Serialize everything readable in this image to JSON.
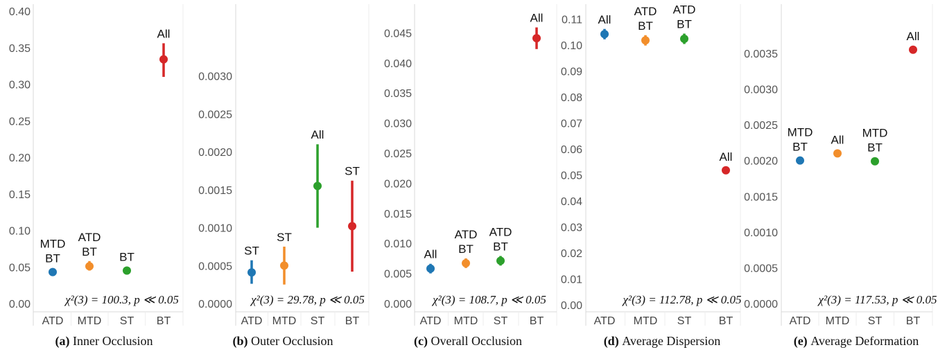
{
  "colors": {
    "ATD": "#1f77b4",
    "MTD": "#f28e2b",
    "ST": "#2ca02c",
    "BT": "#d62728",
    "axis": "#d9d9d9",
    "grid": "#eeeeee"
  },
  "chart_data": [
    {
      "type": "scatter",
      "panel": "a",
      "caption_letter": "(a)",
      "caption_text": "Inner Occlusion",
      "categories": [
        "ATD",
        "MTD",
        "ST",
        "BT"
      ],
      "y_ticks": [
        "0.00",
        "0.05",
        "0.10",
        "0.15",
        "0.20",
        "0.25",
        "0.30",
        "0.35",
        "0.40"
      ],
      "ylim": [
        0,
        0.4
      ],
      "stat": "χ²(3) = 100.3, p ≪ 0.05",
      "points": [
        {
          "category": "ATD",
          "value": 0.043,
          "low": 0.038,
          "high": 0.048,
          "label": [
            "MTD",
            "BT"
          ]
        },
        {
          "category": "MTD",
          "value": 0.051,
          "low": 0.045,
          "high": 0.058,
          "label": [
            "ATD",
            "BT"
          ]
        },
        {
          "category": "ST",
          "value": 0.045,
          "low": 0.04,
          "high": 0.05,
          "label": [
            "BT"
          ]
        },
        {
          "category": "BT",
          "value": 0.334,
          "low": 0.31,
          "high": 0.356,
          "label": [
            "All"
          ]
        }
      ]
    },
    {
      "type": "scatter",
      "panel": "b",
      "caption_letter": "(b)",
      "caption_text": "Outer Occlusion",
      "categories": [
        "ATD",
        "MTD",
        "ST",
        "BT"
      ],
      "y_ticks": [
        "0.0000",
        "0.0005",
        "0.0010",
        "0.0015",
        "0.0020",
        "0.0025",
        "0.0030"
      ],
      "ylim": [
        0,
        0.0035
      ],
      "stat": "χ²(3) = 29.78, p ≪ 0.05",
      "points": [
        {
          "category": "ATD",
          "value": 0.00041,
          "low": 0.00026,
          "high": 0.00057,
          "label": [
            "ST"
          ]
        },
        {
          "category": "MTD",
          "value": 0.0005,
          "low": 0.00025,
          "high": 0.00075,
          "label": [
            "ST"
          ]
        },
        {
          "category": "ST",
          "value": 0.00155,
          "low": 0.001,
          "high": 0.0021,
          "label": [
            "All"
          ]
        },
        {
          "category": "BT",
          "value": 0.00102,
          "low": 0.00042,
          "high": 0.00162,
          "label": [
            "ST"
          ]
        }
      ]
    },
    {
      "type": "scatter",
      "panel": "c",
      "caption_letter": "(c)",
      "caption_text": "Overall Occlusion",
      "categories": [
        "ATD",
        "MTD",
        "ST",
        "BT"
      ],
      "y_ticks": [
        "0.000",
        "0.005",
        "0.010",
        "0.015",
        "0.020",
        "0.025",
        "0.030",
        "0.035",
        "0.040",
        "0.045"
      ],
      "ylim": [
        0,
        0.047
      ],
      "stat": "χ²(3) = 108.7, p ≪ 0.05",
      "points": [
        {
          "category": "ATD",
          "value": 0.0058,
          "low": 0.005,
          "high": 0.0066,
          "label": [
            "All"
          ]
        },
        {
          "category": "MTD",
          "value": 0.0067,
          "low": 0.0059,
          "high": 0.0075,
          "label": [
            "ATD",
            "BT"
          ]
        },
        {
          "category": "ST",
          "value": 0.0071,
          "low": 0.0063,
          "high": 0.0079,
          "label": [
            "ATD",
            "BT"
          ]
        },
        {
          "category": "BT",
          "value": 0.0441,
          "low": 0.0423,
          "high": 0.0459,
          "label": [
            "All"
          ]
        }
      ]
    },
    {
      "type": "scatter",
      "panel": "d",
      "caption_letter": "(d)",
      "caption_text": "Average Dispersion",
      "categories": [
        "ATD",
        "MTD",
        "ST",
        "BT"
      ],
      "y_ticks": [
        "0.00",
        "0.01",
        "0.02",
        "0.03",
        "0.04",
        "0.05",
        "0.06",
        "0.07",
        "0.08",
        "0.09",
        "0.10",
        "0.11"
      ],
      "ylim": [
        0,
        0.112
      ],
      "stat": "χ²(3) = 112.78, p ≪ 0.05",
      "points": [
        {
          "category": "ATD",
          "value": 0.1042,
          "low": 0.1022,
          "high": 0.1062,
          "label": [
            "All"
          ]
        },
        {
          "category": "MTD",
          "value": 0.1018,
          "low": 0.0998,
          "high": 0.1038,
          "label": [
            "ATD",
            "BT"
          ]
        },
        {
          "category": "ST",
          "value": 0.1024,
          "low": 0.1004,
          "high": 0.1044,
          "label": [
            "ATD",
            "BT"
          ]
        },
        {
          "category": "BT",
          "value": 0.0518,
          "low": 0.0505,
          "high": 0.0531,
          "label": [
            "All"
          ]
        }
      ]
    },
    {
      "type": "scatter",
      "panel": "e",
      "caption_letter": "(e)",
      "caption_text": "Average Deformation",
      "categories": [
        "ATD",
        "MTD",
        "ST",
        "BT"
      ],
      "y_ticks": [
        "0.0000",
        "0.0005",
        "0.0010",
        "0.0015",
        "0.0020",
        "0.0025",
        "0.0030",
        "0.0035"
      ],
      "ylim": [
        0,
        0.0038
      ],
      "stat": "χ²(3) = 117.53, p ≪ 0.05",
      "points": [
        {
          "category": "ATD",
          "value": 0.002,
          "low": 0.00196,
          "high": 0.00204,
          "label": [
            "MTD",
            "BT"
          ]
        },
        {
          "category": "MTD",
          "value": 0.0021,
          "low": 0.00206,
          "high": 0.00214,
          "label": [
            "All"
          ]
        },
        {
          "category": "ST",
          "value": 0.00199,
          "low": 0.00195,
          "high": 0.00203,
          "label": [
            "MTD",
            "BT"
          ]
        },
        {
          "category": "BT",
          "value": 0.00355,
          "low": 0.00351,
          "high": 0.00359,
          "label": [
            "All"
          ]
        }
      ]
    }
  ]
}
